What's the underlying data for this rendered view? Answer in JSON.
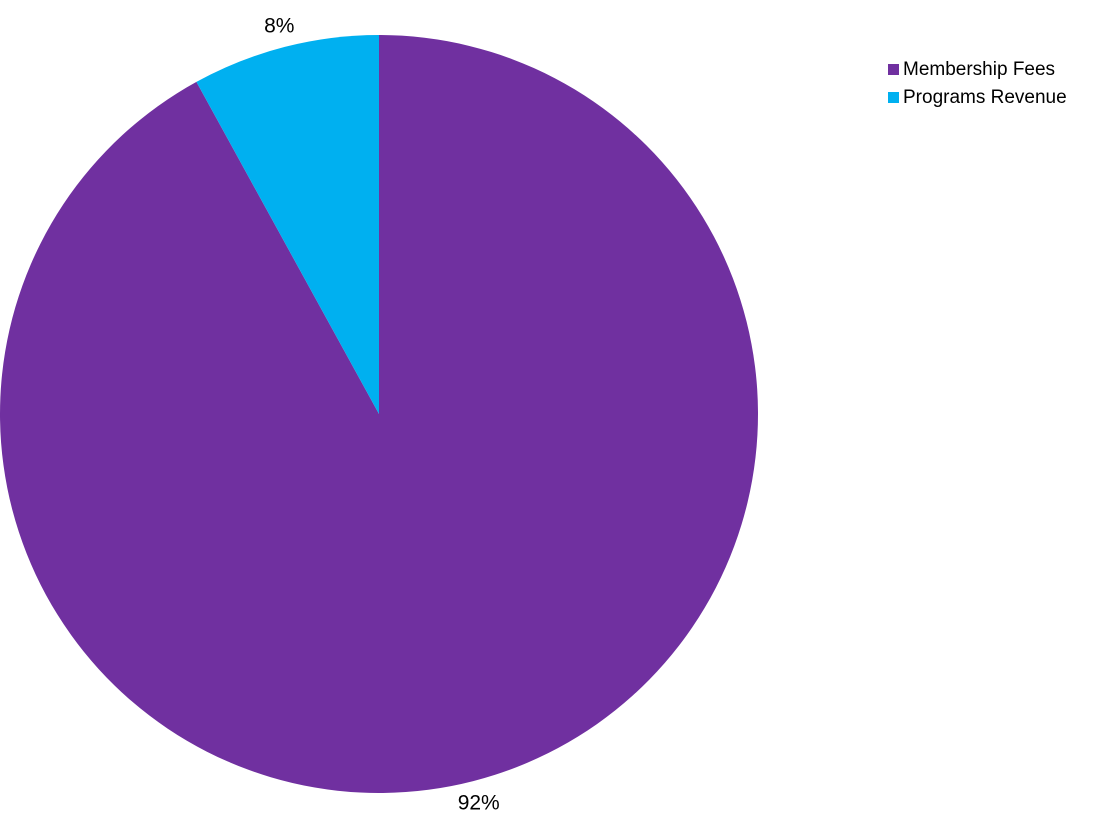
{
  "chart_data": {
    "type": "pie",
    "title": "",
    "legend_position": "top-right",
    "slices": [
      {
        "label": "Membership Fees",
        "value": 92,
        "display": "92%",
        "color": "#7030A0"
      },
      {
        "label": "Programs Revenue",
        "value": 8,
        "display": "8%",
        "color": "#00B0F0"
      }
    ]
  }
}
